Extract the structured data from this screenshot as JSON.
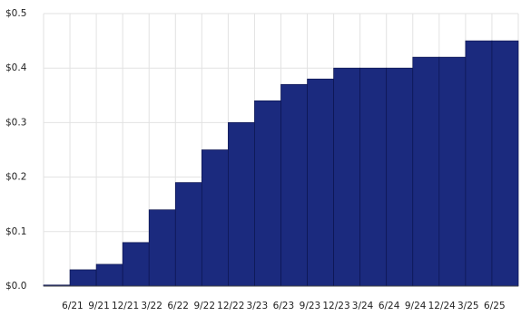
{
  "chart_data": {
    "type": "bar",
    "categories": [
      null,
      "6/21",
      "9/21",
      "12/21",
      "3/22",
      "6/22",
      "9/22",
      "12/22",
      "3/23",
      "6/23",
      "9/23",
      "12/23",
      "3/24",
      "6/24",
      "9/24",
      "12/24",
      "3/25",
      "6/25"
    ],
    "values": [
      0.002,
      0.03,
      0.04,
      0.08,
      0.14,
      0.19,
      0.25,
      0.3,
      0.34,
      0.37,
      0.38,
      0.4,
      0.4,
      0.4,
      0.42,
      0.42,
      0.45,
      0.45
    ],
    "color": "#1b2a7e",
    "ylim": [
      0,
      0.5
    ],
    "yticks": [
      {
        "value": 0,
        "label": "$0.0"
      },
      {
        "value": 0.1,
        "label": "$0.1"
      },
      {
        "value": 0.2,
        "label": "$0.2"
      },
      {
        "value": 0.3,
        "label": "$0.3"
      },
      {
        "value": 0.4,
        "label": "$0.4"
      },
      {
        "value": 0.5,
        "label": "$0.5"
      }
    ],
    "grid": true
  }
}
